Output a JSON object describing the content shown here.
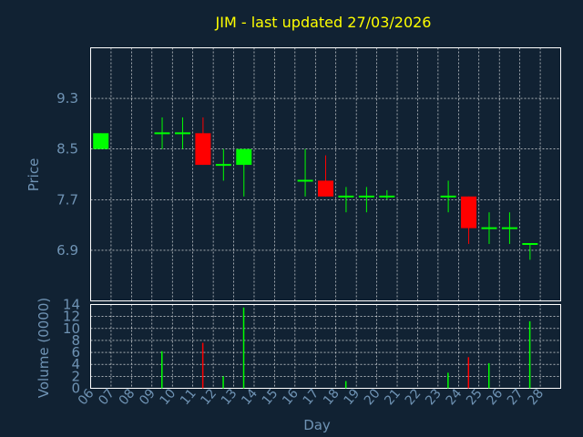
{
  "chart_data": [
    {
      "type": "candlestick",
      "title": "JIM - last updated 27/03/2026",
      "ylabel": "Price",
      "ylim": [
        6.1,
        10.1
      ],
      "yticks": [
        "6.9",
        "7.7",
        "8.5",
        "9.3"
      ],
      "grid": true,
      "colors": {
        "up": "#00ff00",
        "down": "#ff0000",
        "background": "#112233",
        "grid": "#ffffff",
        "axis": "#6f93b4",
        "title": "#ffff00"
      },
      "candles": [
        {
          "day": "06",
          "open": 8.5,
          "high": 8.75,
          "low": 8.5,
          "close": 8.75
        },
        {
          "day": "09",
          "open": 8.75,
          "high": 9.0,
          "low": 8.5,
          "close": 8.75
        },
        {
          "day": "10",
          "open": 8.75,
          "high": 9.0,
          "low": 8.5,
          "close": 8.75
        },
        {
          "day": "11",
          "open": 8.75,
          "high": 9.0,
          "low": 8.25,
          "close": 8.25
        },
        {
          "day": "12",
          "open": 8.25,
          "high": 8.5,
          "low": 8.0,
          "close": 8.25
        },
        {
          "day": "13",
          "open": 8.25,
          "high": 8.5,
          "low": 7.75,
          "close": 8.5
        },
        {
          "day": "16",
          "open": 8.0,
          "high": 8.5,
          "low": 7.75,
          "close": 8.0
        },
        {
          "day": "17",
          "open": 8.0,
          "high": 8.4,
          "low": 7.75,
          "close": 7.75
        },
        {
          "day": "18",
          "open": 7.75,
          "high": 7.9,
          "low": 7.5,
          "close": 7.75
        },
        {
          "day": "19",
          "open": 7.75,
          "high": 7.9,
          "low": 7.5,
          "close": 7.75
        },
        {
          "day": "20",
          "open": 7.75,
          "high": 7.85,
          "low": 7.7,
          "close": 7.75
        },
        {
          "day": "23",
          "open": 7.75,
          "high": 8.0,
          "low": 7.5,
          "close": 7.75
        },
        {
          "day": "24",
          "open": 7.75,
          "high": 7.75,
          "low": 7.0,
          "close": 7.25
        },
        {
          "day": "25",
          "open": 7.25,
          "high": 7.5,
          "low": 7.0,
          "close": 7.25
        },
        {
          "day": "26",
          "open": 7.25,
          "high": 7.5,
          "low": 7.0,
          "close": 7.25
        },
        {
          "day": "27",
          "open": 7.0,
          "high": 7.0,
          "low": 6.75,
          "close": 7.0
        }
      ]
    },
    {
      "type": "bar",
      "xlabel": "Day",
      "ylabel": "Volume (0000)",
      "ylim": [
        0,
        14
      ],
      "yticks": [
        "0",
        "2",
        "4",
        "6",
        "8",
        "10",
        "12",
        "14"
      ],
      "grid": true,
      "categories": [
        "06",
        "07",
        "08",
        "09",
        "10",
        "11",
        "12",
        "13",
        "14",
        "15",
        "16",
        "17",
        "18",
        "19",
        "20",
        "21",
        "22",
        "23",
        "24",
        "25",
        "26",
        "27",
        "28"
      ],
      "values": [
        0,
        0,
        0,
        6.2,
        0,
        7.6,
        2.0,
        13.5,
        0,
        0,
        0,
        0,
        1.2,
        0,
        0,
        0,
        0,
        2.6,
        5.2,
        4.2,
        0,
        11.2,
        0
      ],
      "bar_colors": [
        "#00ff00",
        "#00ff00",
        "#00ff00",
        "#00ff00",
        "#00ff00",
        "#ff0000",
        "#00ff00",
        "#00ff00",
        "#00ff00",
        "#00ff00",
        "#00ff00",
        "#00ff00",
        "#00ff00",
        "#00ff00",
        "#00ff00",
        "#00ff00",
        "#00ff00",
        "#00ff00",
        "#ff0000",
        "#00ff00",
        "#00ff00",
        "#00ff00",
        "#00ff00"
      ]
    }
  ]
}
